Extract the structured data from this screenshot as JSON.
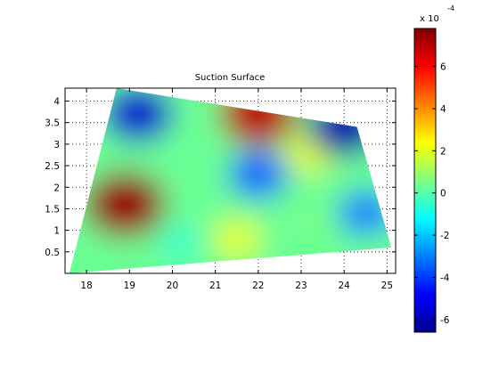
{
  "chart_data": {
    "type": "heatmap",
    "title": "Suction Surface",
    "xlabel": "",
    "ylabel": "",
    "xlim": [
      17.5,
      25.2
    ],
    "ylim": [
      0,
      4.3
    ],
    "x_ticks": [
      18,
      19,
      20,
      21,
      22,
      23,
      24,
      25
    ],
    "y_ticks": [
      0.5,
      1,
      1.5,
      2,
      2.5,
      3,
      3.5,
      4
    ],
    "x_tick_labels": [
      "18",
      "19",
      "20",
      "21",
      "22",
      "23",
      "24",
      "25"
    ],
    "y_tick_labels": [
      "0.5",
      "1",
      "1.5",
      "2",
      "2.5",
      "3",
      "3.5",
      "4"
    ],
    "grid": true,
    "colormap": "jet",
    "surface_outline": [
      [
        17.6,
        0
      ],
      [
        18.7,
        4.3
      ],
      [
        24.3,
        3.4
      ],
      [
        25.1,
        0.6
      ]
    ],
    "features": [
      {
        "x": 18.9,
        "y": 1.6,
        "value": 7.5
      },
      {
        "x": 22.0,
        "y": 3.7,
        "value": 7.0
      },
      {
        "x": 23.2,
        "y": 2.8,
        "value": 2.0
      },
      {
        "x": 19.2,
        "y": 3.7,
        "value": -5.5
      },
      {
        "x": 24.0,
        "y": 3.4,
        "value": -6.0
      },
      {
        "x": 22.0,
        "y": 2.3,
        "value": -3.5
      },
      {
        "x": 24.5,
        "y": 1.4,
        "value": -3.0
      },
      {
        "x": 20.2,
        "y": 0.7,
        "value": -0.5
      },
      {
        "x": 21.5,
        "y": 0.8,
        "value": 2.0
      },
      {
        "x": 23.3,
        "y": 1.2,
        "value": 0.5
      }
    ],
    "colorbar": {
      "range": [
        -6.6,
        7.8
      ],
      "ticks": [
        -6,
        -4,
        -2,
        0,
        2,
        4,
        6
      ],
      "tick_labels": [
        "-6",
        "-4",
        "-2",
        "0",
        "2",
        "4",
        "6"
      ],
      "multiplier_base": "x 10",
      "multiplier_exponent": "-4"
    }
  }
}
